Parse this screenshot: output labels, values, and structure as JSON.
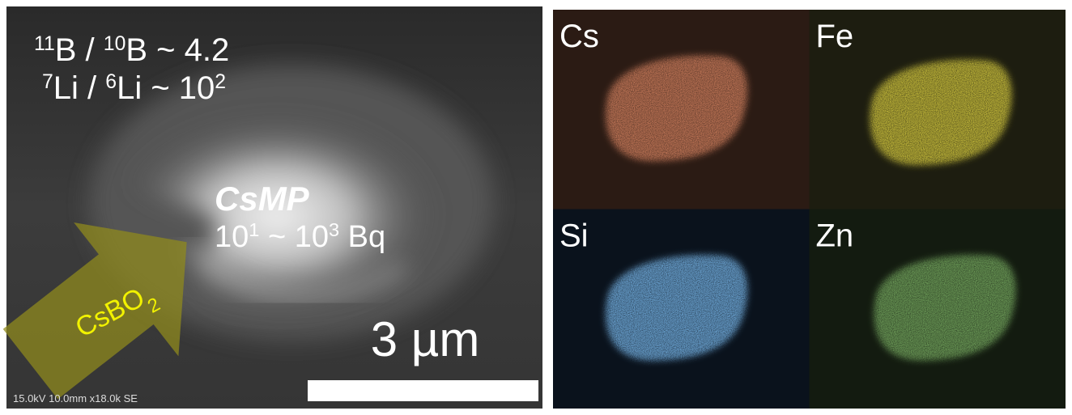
{
  "sem_image": {
    "isotope_ratios": [
      [
        {
          "sup": "11"
        },
        {
          "text": "B / "
        },
        {
          "sup": "10"
        },
        {
          "text": "B ~ 4.2"
        }
      ],
      [
        {
          "sup": "7"
        },
        {
          "text": "Li / "
        },
        {
          "sup": "6"
        },
        {
          "text": "Li ~ 10"
        },
        {
          "sup": "2"
        }
      ]
    ],
    "particle_name": "CsMP",
    "activity": [
      {
        "text": "10"
      },
      {
        "sup": "1"
      },
      {
        "text": " ~ 10"
      },
      {
        "sup": "3"
      },
      {
        "text": " Bq"
      }
    ],
    "arrow_label": [
      {
        "text": "CsBO"
      },
      {
        "sub": "2"
      }
    ],
    "scale_bar": "3 µm",
    "footer": "15.0kV 10.0mm x18.0k SE"
  },
  "eds_maps": [
    {
      "label": "Cs",
      "color": "#d0805f",
      "background": "#2b1b14"
    },
    {
      "label": "Fe",
      "color": "#cfc440",
      "background": "#1d1d10"
    },
    {
      "label": "Si",
      "color": "#72aee0",
      "background": "#0a121c"
    },
    {
      "label": "Zn",
      "color": "#74a65e",
      "background": "#131b10"
    }
  ]
}
